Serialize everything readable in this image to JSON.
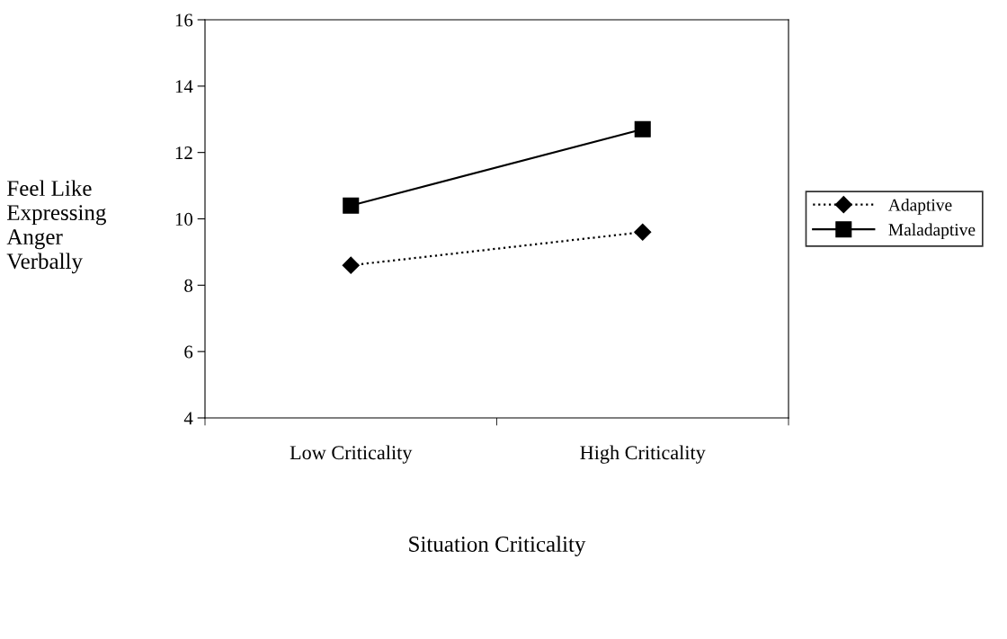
{
  "chart_data": {
    "type": "line",
    "xlabel": "Situation Criticality",
    "ylabel": "Feel Like\nExpressing\nAnger\nVerbally",
    "categories": [
      "Low Criticality",
      "High Criticality"
    ],
    "series": [
      {
        "name": "Adaptive",
        "color": "#000000",
        "values": [
          8.6,
          9.6
        ],
        "marker": "diamond",
        "line_style": "dotted"
      },
      {
        "name": "Maladaptive",
        "color": "#000000",
        "values": [
          10.4,
          12.7
        ],
        "marker": "square",
        "line_style": "solid"
      }
    ],
    "ylim": [
      4,
      16
    ],
    "yticks": [
      4,
      6,
      8,
      10,
      12,
      14,
      16
    ],
    "grid": false,
    "legend": "right"
  }
}
